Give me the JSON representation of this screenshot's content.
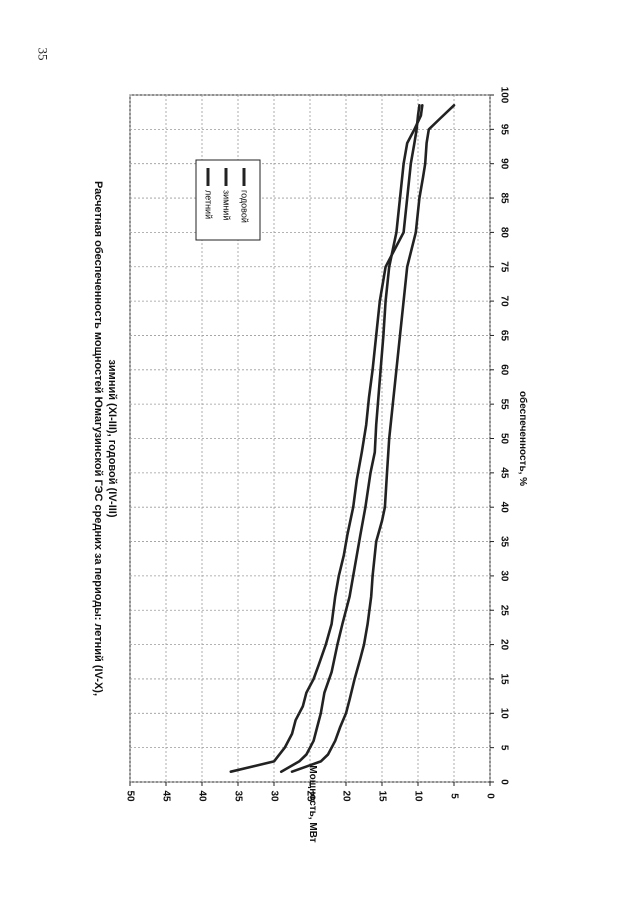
{
  "page": {
    "number": "35"
  },
  "chart_data": {
    "type": "line",
    "title_line1": "Расчетная обеспеченность мощностей Юмагузинской ГЭС средних за периоды: летний (IV-X),",
    "title_line2": "зимний (XI-III), годовой (IV-III)",
    "xlabel": "обеспеченность, %",
    "ylabel": "Мощность, МВт",
    "xlim": [
      0,
      100
    ],
    "ylim": [
      0,
      50
    ],
    "xticks": [
      0,
      5,
      10,
      15,
      20,
      25,
      30,
      35,
      40,
      45,
      50,
      55,
      60,
      65,
      70,
      75,
      80,
      85,
      90,
      95,
      100
    ],
    "yticks": [
      0,
      5,
      10,
      15,
      20,
      25,
      30,
      35,
      40,
      45,
      50
    ],
    "grid": true,
    "legend_position": "top-right",
    "colors": {
      "line": "#222222",
      "grid": "#9a9a9a"
    },
    "series": [
      {
        "name": "летний",
        "x": [
          1.5,
          3,
          5,
          7,
          9,
          11,
          13,
          15,
          17,
          20,
          23,
          27,
          30,
          33,
          36,
          40,
          44,
          48,
          52,
          56,
          60,
          65,
          70,
          75,
          78,
          80,
          85,
          90,
          93,
          95,
          97,
          98.5
        ],
        "y": [
          36,
          30,
          28.5,
          27.5,
          27,
          26,
          25.5,
          24.5,
          23.8,
          22.8,
          22,
          21.5,
          21,
          20.3,
          19.8,
          19,
          18.5,
          17.8,
          17.2,
          16.8,
          16.3,
          15.8,
          15.3,
          14.5,
          13,
          12,
          11.5,
          11,
          10.5,
          10.2,
          10,
          9.8
        ]
      },
      {
        "name": "зимний",
        "x": [
          1.5,
          3,
          4,
          6,
          8,
          10,
          12,
          15,
          18,
          20,
          23,
          27,
          30,
          35,
          38,
          40,
          45,
          50,
          55,
          60,
          65,
          70,
          75,
          80,
          85,
          88,
          90,
          93,
          95,
          96.5,
          98.5
        ],
        "y": [
          27.5,
          23.5,
          22.5,
          21.5,
          20.8,
          20,
          19.5,
          18.8,
          18,
          17.5,
          17,
          16.5,
          16.3,
          15.8,
          15,
          14.6,
          14.3,
          14,
          13.5,
          13,
          12.5,
          12,
          11.5,
          10.3,
          9.8,
          9.3,
          9,
          8.8,
          8.5,
          7,
          5
        ]
      },
      {
        "name": "годовой",
        "x": [
          1.5,
          3,
          4,
          6,
          8,
          10,
          13,
          16,
          20,
          23,
          27,
          30,
          33,
          36,
          40,
          45,
          48,
          52,
          56,
          60,
          65,
          70,
          75,
          80,
          85,
          90,
          93,
          95,
          97,
          98.5
        ],
        "y": [
          29,
          26.5,
          25.5,
          24.5,
          24,
          23.5,
          23,
          22,
          21.2,
          20.5,
          19.5,
          19,
          18.5,
          18,
          17.3,
          16.6,
          16,
          15.8,
          15.5,
          15.2,
          14.8,
          14.5,
          14,
          13,
          12.5,
          12,
          11.5,
          10.5,
          9.6,
          9.4
        ]
      }
    ]
  }
}
